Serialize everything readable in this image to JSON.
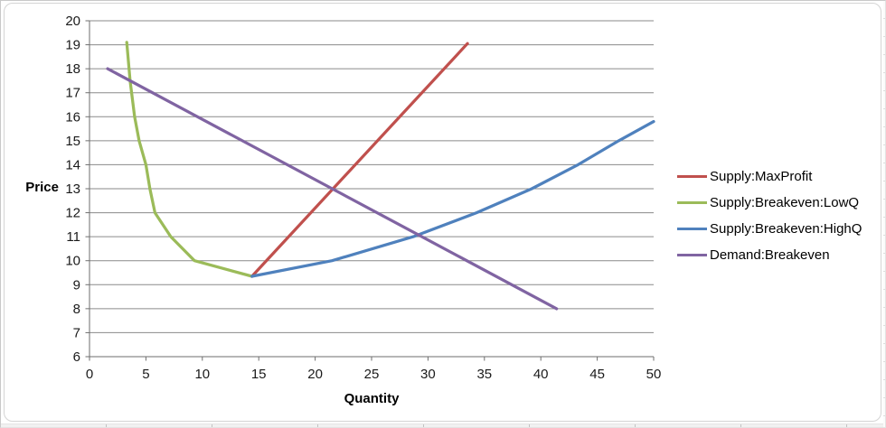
{
  "chart_data": {
    "type": "line",
    "title": "",
    "xlabel": "Quantity",
    "ylabel": "Price",
    "xlim": [
      0,
      50
    ],
    "ylim": [
      6,
      20
    ],
    "x_ticks": [
      0,
      5,
      10,
      15,
      20,
      25,
      30,
      35,
      40,
      45,
      50
    ],
    "y_ticks": [
      6,
      7,
      8,
      9,
      10,
      11,
      12,
      13,
      14,
      15,
      16,
      17,
      18,
      19,
      20
    ],
    "grid": "horizontal-only",
    "legend_position": "right",
    "gridline_color": "#8a8a8a",
    "axis_color": "#6e6e6e",
    "tick_label_color": "#1a1a1a",
    "series": [
      {
        "name": "Supply:MaxProfit",
        "color": "#C0504D",
        "points": [
          [
            14.4,
            9.35
          ],
          [
            33.5,
            19.05
          ]
        ]
      },
      {
        "name": "Supply:Breakeven:LowQ",
        "color": "#9BBB59",
        "points": [
          [
            3.3,
            19.1
          ],
          [
            3.6,
            17.5
          ],
          [
            4.0,
            16.0
          ],
          [
            4.4,
            15.0
          ],
          [
            5.0,
            14.0
          ],
          [
            5.35,
            13.0
          ],
          [
            5.8,
            12.0
          ],
          [
            7.2,
            11.0
          ],
          [
            9.3,
            10.0
          ],
          [
            14.4,
            9.35
          ]
        ]
      },
      {
        "name": "Supply:Breakeven:HighQ",
        "color": "#4F81BD",
        "points": [
          [
            14.4,
            9.35
          ],
          [
            21.5,
            10.0
          ],
          [
            28.7,
            11.0
          ],
          [
            34.3,
            12.0
          ],
          [
            39.2,
            13.0
          ],
          [
            43.3,
            14.0
          ],
          [
            46.9,
            15.0
          ],
          [
            50.0,
            15.8
          ]
        ]
      },
      {
        "name": "Demand:Breakeven",
        "color": "#8064A2",
        "points": [
          [
            1.6,
            18.0
          ],
          [
            41.4,
            8.0
          ]
        ]
      }
    ]
  }
}
